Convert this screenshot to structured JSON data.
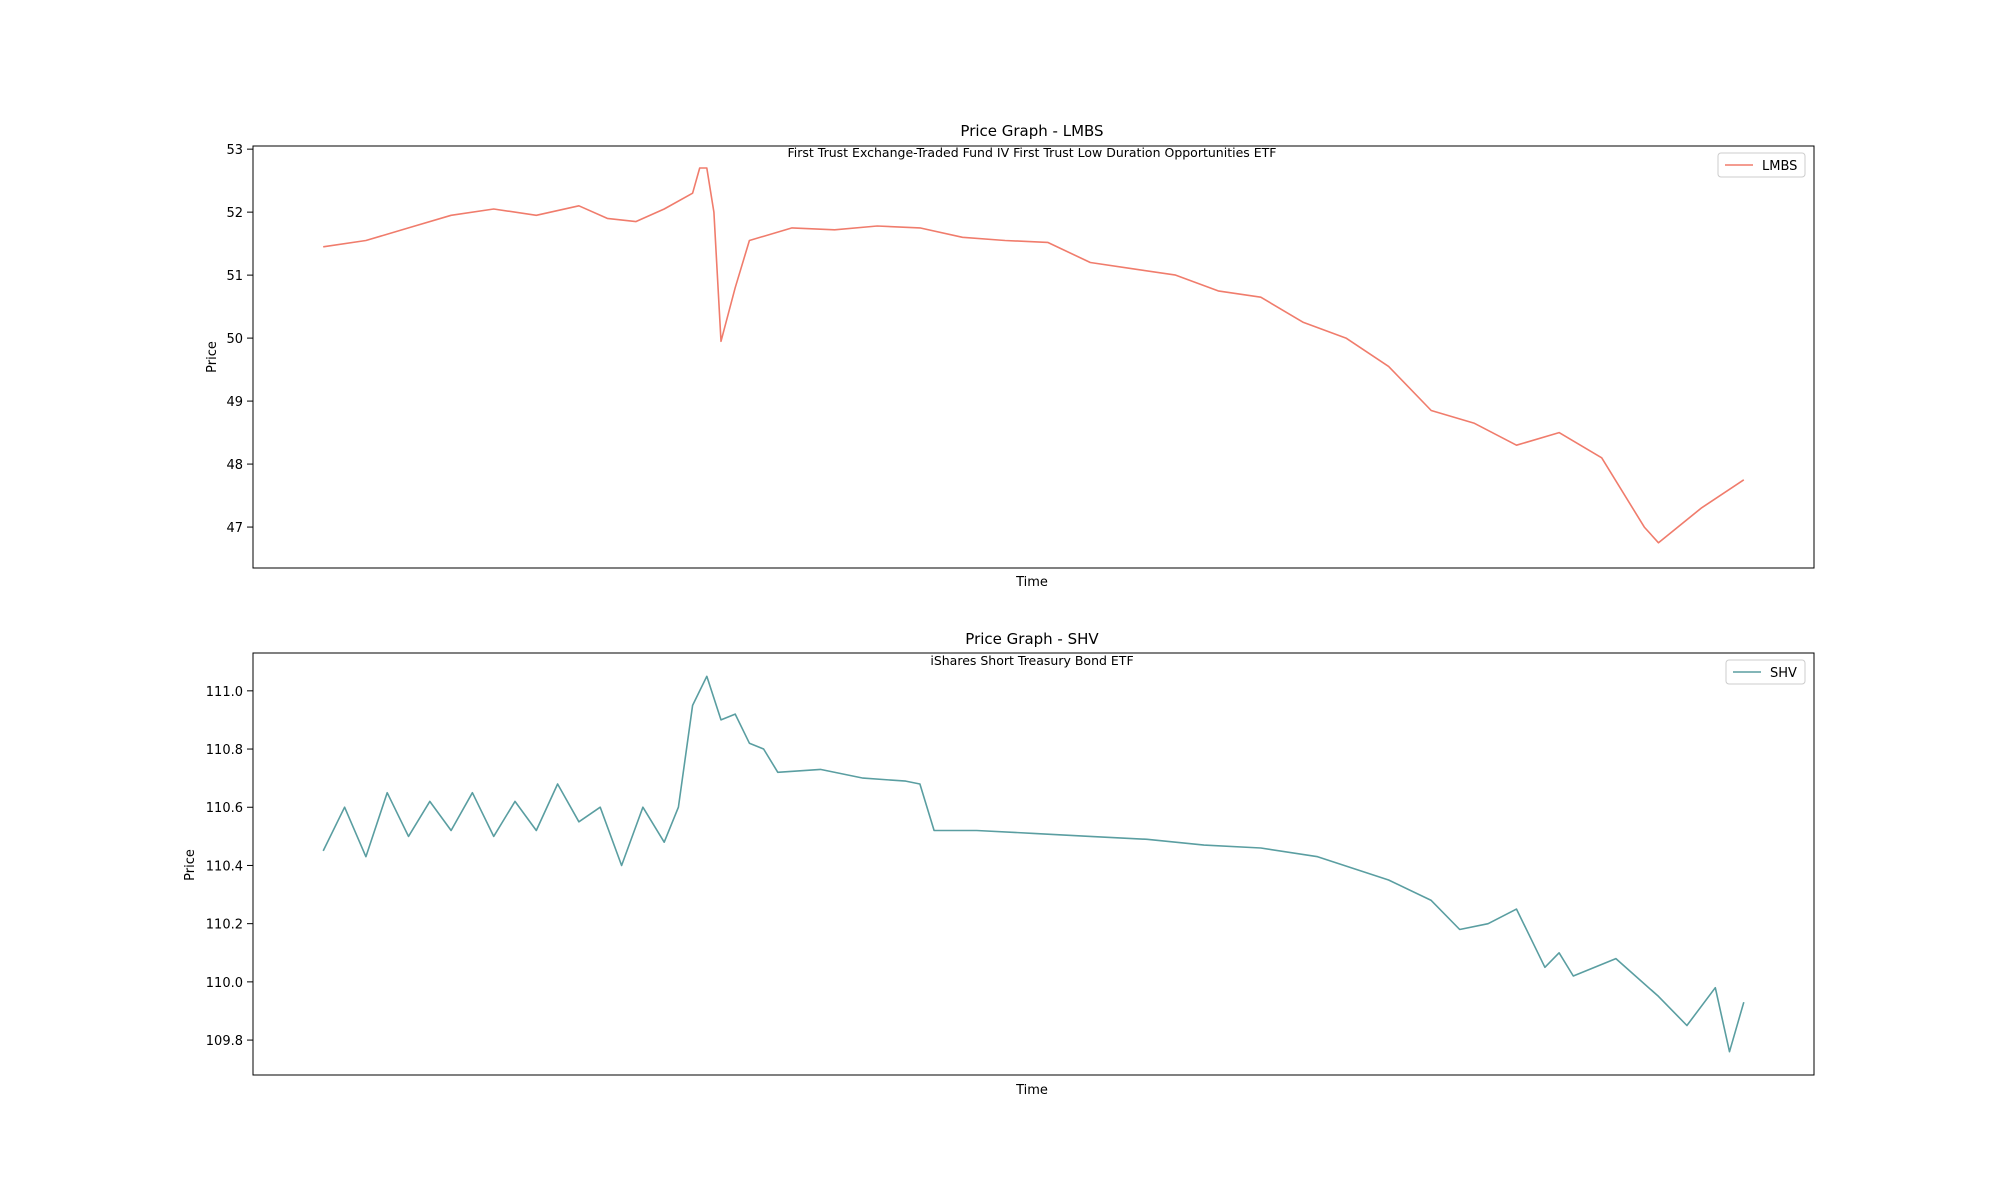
{
  "chart_data": [
    {
      "type": "line",
      "title": "Price Graph - LMBS",
      "subtitle": "First Trust Exchange-Traded Fund IV First Trust Low Duration Opportunities ETF",
      "xlabel": "Time",
      "ylabel": "Price",
      "ylim": [
        46.35,
        53.05
      ],
      "yticks": [
        "47",
        "48",
        "49",
        "50",
        "51",
        "52",
        "53"
      ],
      "legend": "top-right",
      "grid": false,
      "color": "#f07c6c",
      "x": [
        0,
        3,
        6,
        9,
        12,
        15,
        18,
        20,
        22,
        24,
        26,
        26.5,
        27,
        27.5,
        28,
        29,
        30,
        33,
        36,
        39,
        42,
        45,
        48,
        51,
        54,
        57,
        60,
        63,
        66,
        69,
        72,
        75,
        78,
        81,
        84,
        87,
        90,
        93,
        94,
        97,
        100
      ],
      "series": [
        {
          "name": "LMBS",
          "values": [
            51.45,
            51.55,
            51.75,
            51.95,
            52.05,
            51.95,
            52.1,
            51.9,
            51.85,
            52.05,
            52.3,
            52.7,
            52.7,
            52.0,
            49.95,
            50.8,
            51.55,
            51.75,
            51.72,
            51.78,
            51.75,
            51.6,
            51.55,
            51.52,
            51.2,
            51.1,
            51.0,
            50.75,
            50.65,
            50.25,
            50.0,
            49.55,
            48.85,
            48.65,
            48.3,
            48.5,
            48.1,
            47.0,
            46.75,
            47.3,
            47.75
          ]
        }
      ]
    },
    {
      "type": "line",
      "title": "Price Graph - SHV",
      "subtitle": "iShares Short Treasury Bond ETF",
      "xlabel": "Time",
      "ylabel": "Price",
      "ylim": [
        109.68,
        111.13
      ],
      "yticks": [
        "109.8",
        "110.0",
        "110.2",
        "110.4",
        "110.6",
        "110.8",
        "111.0"
      ],
      "legend": "top-right",
      "grid": false,
      "color": "#5a9ea1",
      "x": [
        0,
        1.5,
        3,
        4.5,
        6,
        7.5,
        9,
        10.5,
        12,
        13.5,
        15,
        16.5,
        18,
        19.5,
        21,
        22.5,
        24,
        25,
        26,
        27,
        28,
        29,
        30,
        31,
        32,
        35,
        38,
        41,
        42,
        43,
        46,
        50,
        54,
        58,
        62,
        66,
        70,
        75,
        78,
        80,
        82,
        84,
        86,
        87,
        88,
        91,
        94,
        96,
        98,
        99,
        100
      ],
      "series": [
        {
          "name": "SHV",
          "values": [
            110.45,
            110.6,
            110.43,
            110.65,
            110.5,
            110.62,
            110.52,
            110.65,
            110.5,
            110.62,
            110.52,
            110.68,
            110.55,
            110.6,
            110.4,
            110.6,
            110.48,
            110.6,
            110.95,
            111.05,
            110.9,
            110.92,
            110.82,
            110.8,
            110.72,
            110.73,
            110.7,
            110.69,
            110.68,
            110.52,
            110.52,
            110.51,
            110.5,
            110.49,
            110.47,
            110.46,
            110.43,
            110.35,
            110.28,
            110.18,
            110.2,
            110.25,
            110.05,
            110.1,
            110.02,
            110.08,
            109.95,
            109.85,
            109.98,
            109.76,
            109.93
          ]
        }
      ]
    }
  ]
}
